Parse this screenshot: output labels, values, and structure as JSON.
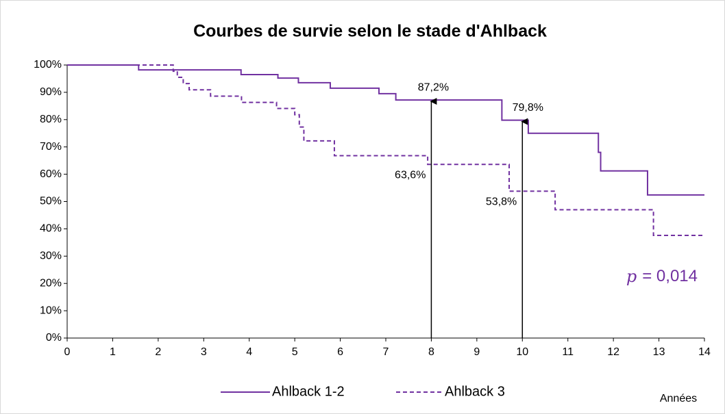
{
  "chart_data": {
    "type": "step",
    "title": "Courbes de survie selon le stade d'Ahlback",
    "x_label": "Années",
    "xlim": [
      0,
      14
    ],
    "xticks": [
      0,
      1,
      2,
      3,
      4,
      5,
      6,
      7,
      8,
      9,
      10,
      11,
      12,
      13,
      14
    ],
    "ylim": [
      0,
      100
    ],
    "yticks": [
      {
        "value": 0,
        "label": "0%"
      },
      {
        "value": 10,
        "label": "10%"
      },
      {
        "value": 20,
        "label": "20%"
      },
      {
        "value": 30,
        "label": "30%"
      },
      {
        "value": 40,
        "label": "40%"
      },
      {
        "value": 50,
        "label": "50%"
      },
      {
        "value": 60,
        "label": "60%"
      },
      {
        "value": 70,
        "label": "70%"
      },
      {
        "value": 80,
        "label": "80%"
      },
      {
        "value": 90,
        "label": "90%"
      },
      {
        "value": 100,
        "label": "100%"
      }
    ],
    "legend": "bottom",
    "series": [
      {
        "name": "Ahlback 1-2",
        "color": "#7030a0",
        "dash": false,
        "x": [
          0,
          1.57,
          3.82,
          4.63,
          5.08,
          5.78,
          6.85,
          7.22,
          9.55,
          10.13,
          11.67,
          11.72,
          12.75,
          14
        ],
        "values": [
          100,
          98.2,
          96.5,
          95.2,
          93.5,
          91.5,
          89.5,
          87.2,
          79.8,
          75,
          68,
          61.2,
          52.4,
          52.4
        ]
      },
      {
        "name": "Ahlback 3",
        "color": "#7030a0",
        "dash": true,
        "x": [
          0,
          2.33,
          2.42,
          2.55,
          2.68,
          3.15,
          3.83,
          4.6,
          5.0,
          5.1,
          5.2,
          5.87,
          7.92,
          9.71,
          10.72,
          12.88,
          14
        ],
        "values": [
          100,
          97.7,
          95.5,
          93.2,
          90.9,
          88.6,
          86.3,
          84.1,
          81.8,
          77.3,
          72.2,
          66.8,
          63.6,
          53.8,
          47,
          37.6,
          37.6
        ]
      }
    ],
    "annotations": [
      {
        "x": 8,
        "y": 87.2,
        "label": "87,2%",
        "arrow": true
      },
      {
        "x": 10,
        "y": 79.8,
        "label": "79,8%",
        "arrow": true
      },
      {
        "x": 8,
        "y": 63.6,
        "label": "63,6%",
        "arrow": false
      },
      {
        "x": 10,
        "y": 53.8,
        "label": "53,8%",
        "arrow": false
      }
    ],
    "p_value": {
      "symbol": "p",
      "text": "= 0,014"
    }
  }
}
